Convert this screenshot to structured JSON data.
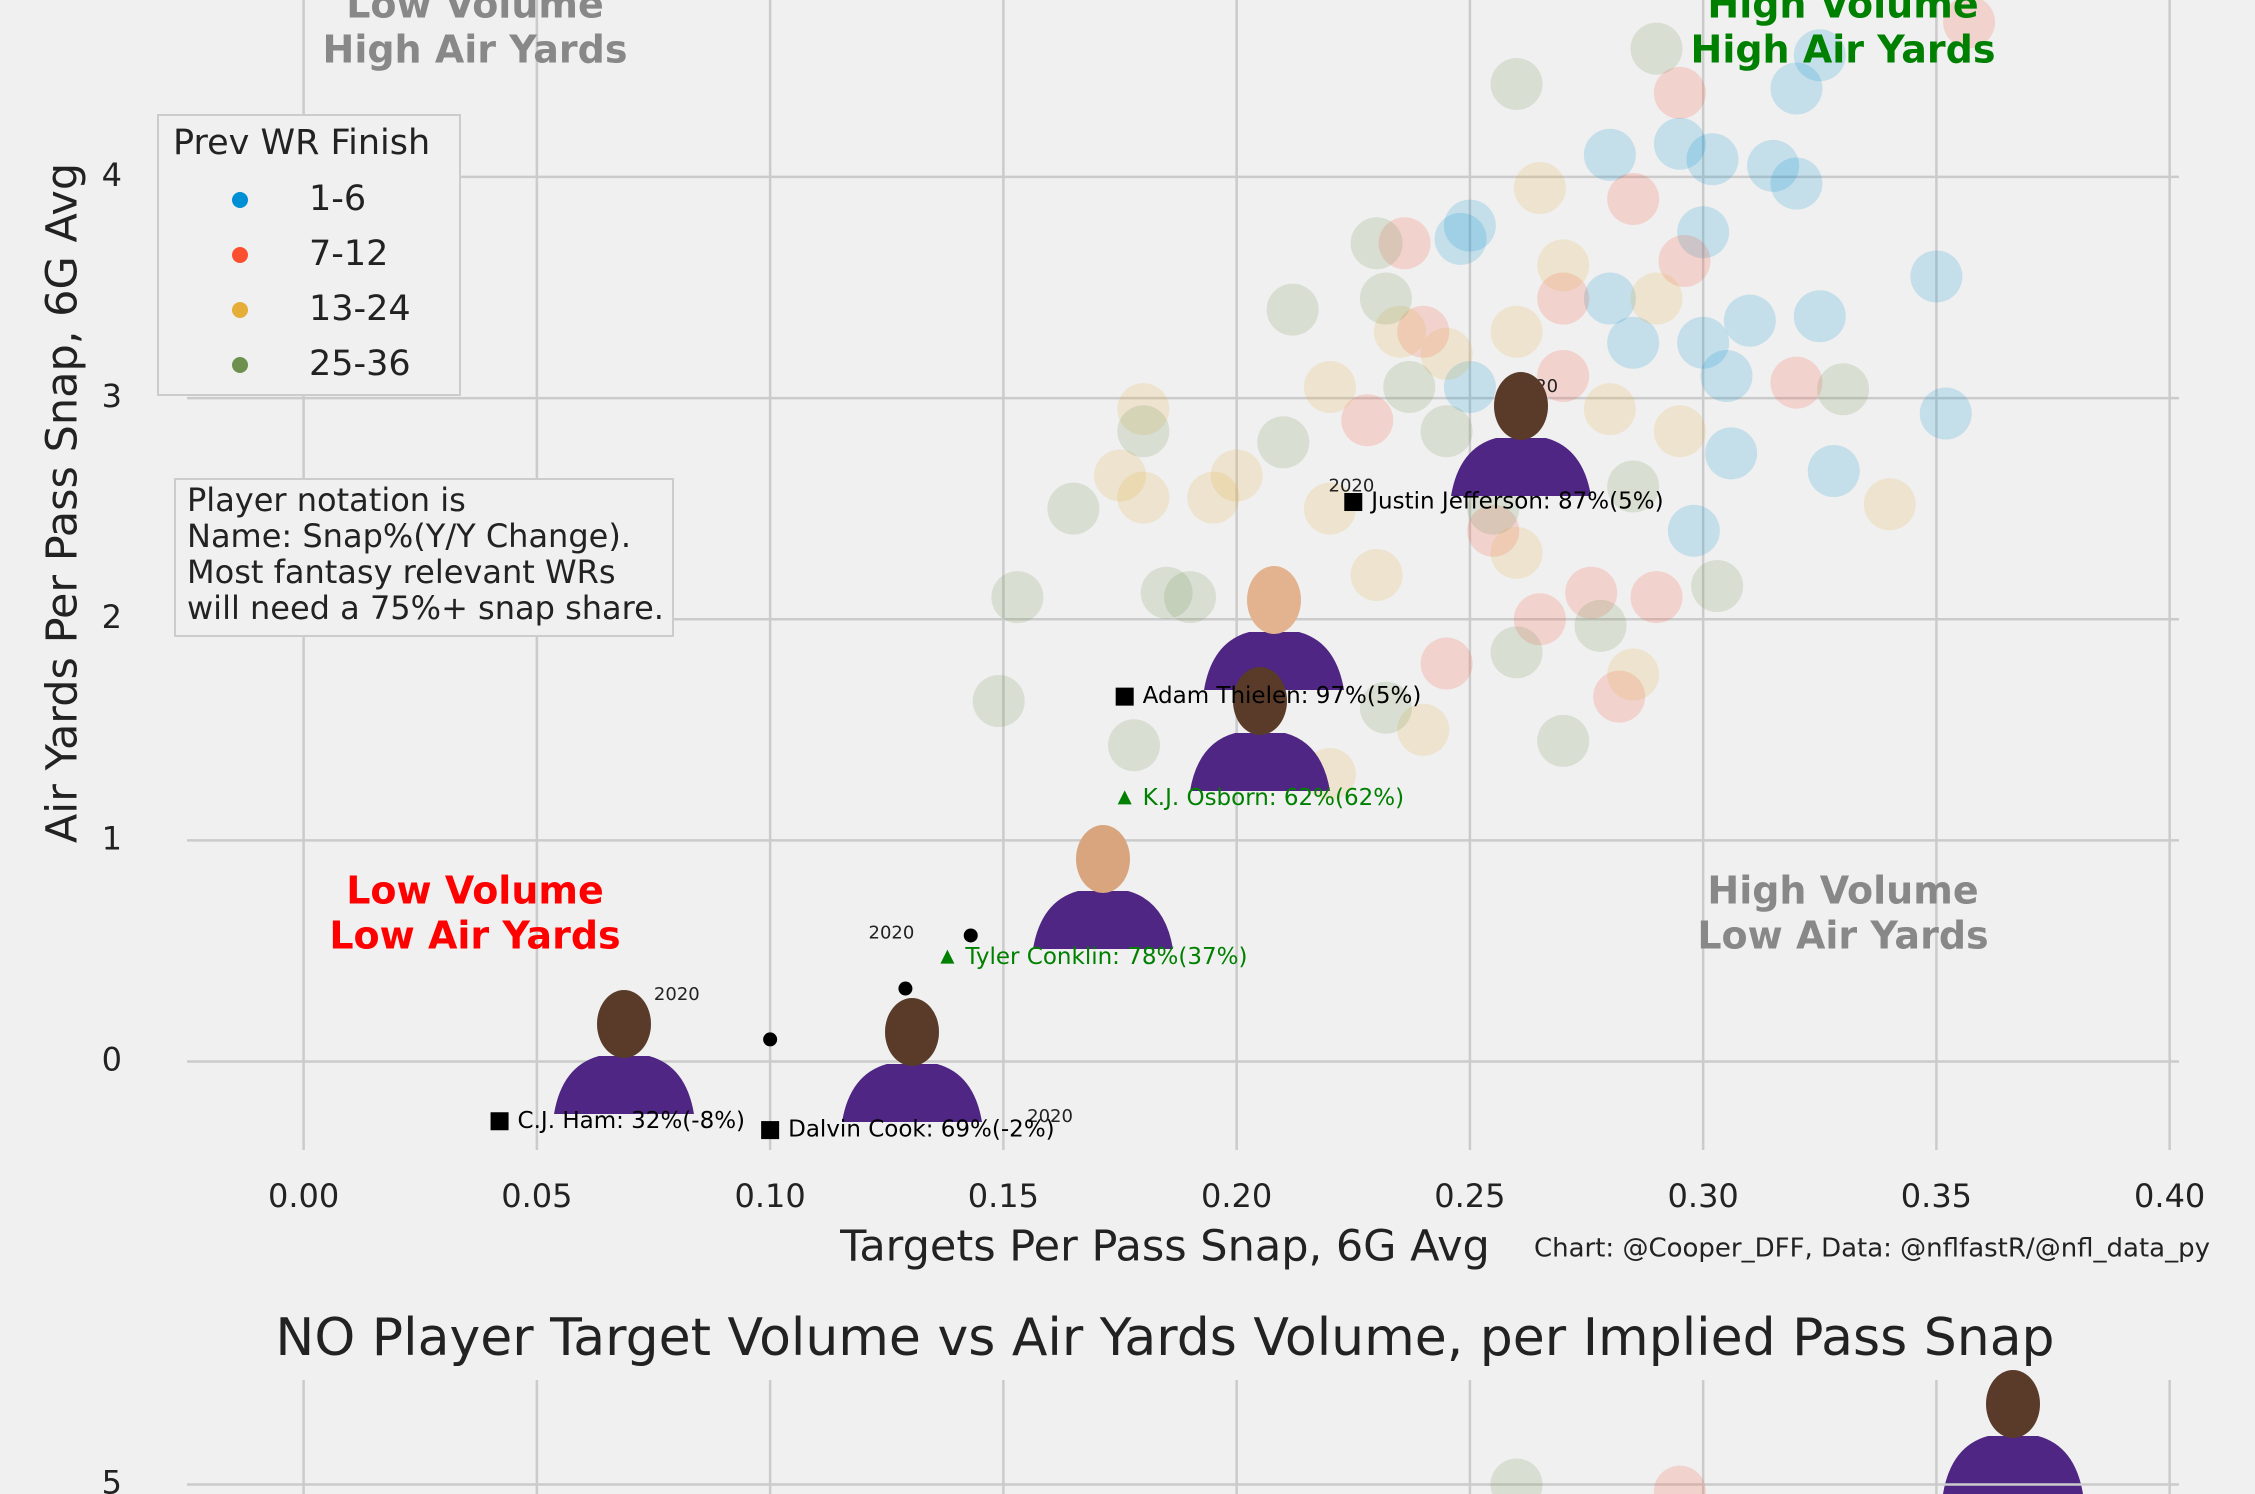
{
  "chart_data": [
    {
      "type": "scatter",
      "xlabel": "Targets Per Pass Snap, 6G Avg",
      "ylabel": "Air Yards Per Pass Snap, 6G Avg",
      "credit": "Chart: @Cooper_DFF, Data: @nflfastR/@nfl_data_py",
      "xlim": [
        -0.025,
        0.402
      ],
      "ylim": [
        -0.4,
        4.8
      ],
      "xticks": [
        {
          "value": 0,
          "label": "0.00"
        },
        {
          "value": 0.05,
          "label": "0.05"
        },
        {
          "value": 0.1,
          "label": "0.10"
        },
        {
          "value": 0.15,
          "label": "0.15"
        },
        {
          "value": 0.2,
          "label": "0.20"
        },
        {
          "value": 0.25,
          "label": "0.25"
        },
        {
          "value": 0.3,
          "label": "0.30"
        },
        {
          "value": 0.35,
          "label": "0.35"
        },
        {
          "value": 0.4,
          "label": "0.40"
        }
      ],
      "yticks": [
        0,
        1,
        2,
        3,
        4
      ],
      "grid": true,
      "legend": {
        "title": "Prev WR Finish",
        "position": "upper left"
      },
      "series": [
        {
          "name": "1-6",
          "color": "#008fd5",
          "x": [
            0.28,
            0.295,
            0.302,
            0.315,
            0.32,
            0.32,
            0.325,
            0.25,
            0.248,
            0.3,
            0.31,
            0.325,
            0.35,
            0.285,
            0.3,
            0.305,
            0.352,
            0.306,
            0.328,
            0.298,
            0.28,
            0.25
          ],
          "values": [
            4.1,
            4.15,
            4.08,
            4.05,
            3.97,
            4.4,
            4.55,
            3.78,
            3.72,
            3.75,
            3.35,
            3.37,
            3.55,
            3.25,
            3.25,
            3.1,
            2.93,
            2.75,
            2.67,
            2.4,
            3.45,
            3.05
          ]
        },
        {
          "name": "7-12",
          "color": "#fc4f30",
          "x": [
            0.295,
            0.357,
            0.285,
            0.296,
            0.236,
            0.24,
            0.27,
            0.32,
            0.276,
            0.29,
            0.282,
            0.255,
            0.265,
            0.245,
            0.27,
            0.228
          ],
          "values": [
            4.38,
            4.7,
            3.9,
            3.62,
            3.7,
            3.3,
            3.1,
            3.07,
            2.12,
            2.1,
            1.65,
            2.4,
            2.0,
            1.8,
            3.45,
            2.9
          ]
        },
        {
          "name": "13-24",
          "color": "#e5ae38",
          "x": [
            0.265,
            0.29,
            0.27,
            0.245,
            0.26,
            0.22,
            0.2,
            0.18,
            0.175,
            0.18,
            0.195,
            0.23,
            0.22,
            0.26,
            0.285,
            0.34,
            0.24,
            0.28,
            0.295,
            0.22,
            0.235
          ],
          "values": [
            3.95,
            3.45,
            3.6,
            3.2,
            3.3,
            3.05,
            2.65,
            2.95,
            2.65,
            2.55,
            2.55,
            2.2,
            2.5,
            2.3,
            1.75,
            2.52,
            1.5,
            2.95,
            2.85,
            1.3,
            3.3
          ]
        },
        {
          "name": "25-36",
          "color": "#6d904f",
          "x": [
            0.26,
            0.29,
            0.23,
            0.212,
            0.232,
            0.237,
            0.18,
            0.165,
            0.153,
            0.185,
            0.19,
            0.149,
            0.178,
            0.245,
            0.255,
            0.27,
            0.278,
            0.303,
            0.33,
            0.285,
            0.21,
            0.26,
            0.232
          ],
          "values": [
            4.42,
            4.58,
            3.7,
            3.4,
            3.45,
            3.05,
            2.85,
            2.5,
            2.1,
            2.12,
            2.1,
            1.63,
            1.43,
            2.85,
            2.5,
            1.45,
            1.97,
            2.15,
            3.04,
            2.6,
            2.8,
            1.85,
            1.6
          ]
        }
      ],
      "players": [
        {
          "label": "Justin Jefferson: 87%(5%)",
          "x": 0.225,
          "y": 2.53,
          "marker": "square",
          "color": "#000000"
        },
        {
          "label": "Adam Thielen: 97%(5%)",
          "x": 0.176,
          "y": 1.65,
          "marker": "square",
          "color": "#000000"
        },
        {
          "label": "K.J. Osborn: 62%(62%)",
          "x": 0.176,
          "y": 1.19,
          "marker": "triangle",
          "color": "#008000"
        },
        {
          "label": "Tyler Conklin: 78%(37%)",
          "x": 0.138,
          "y": 0.47,
          "marker": "triangle",
          "color": "#008000",
          "prev_x": 0.143,
          "prev_y": 0.57
        },
        {
          "label": "C.J. Ham: 32%(-8%)",
          "x": 0.042,
          "y": -0.27,
          "marker": "square",
          "color": "#000000",
          "prev_x": 0.1,
          "prev_y": 0.1
        },
        {
          "label": "Dalvin Cook: 69%(-2%)",
          "x": 0.1,
          "y": -0.31,
          "marker": "square",
          "color": "#000000",
          "prev_x": 0.129,
          "prev_y": 0.33
        }
      ],
      "annotations": [
        {
          "text": "2020",
          "x": 0.08,
          "y": 0.3
        },
        {
          "text": "2020",
          "x": 0.16,
          "y": -0.25
        },
        {
          "text": "2020",
          "x": 0.126,
          "y": 0.58
        },
        {
          "text": "2020",
          "x": 0.2246,
          "y": 2.6
        },
        {
          "text": "2020",
          "x": 0.264,
          "y": 3.05
        }
      ],
      "quadrant_labels": [
        {
          "lines": [
            "Low Volume",
            "High Air Yards"
          ],
          "color": "#888888"
        },
        {
          "lines": [
            "High Volume",
            "High Air Yards"
          ],
          "color": "#008000"
        },
        {
          "lines": [
            "Low Volume",
            "Low Air Yards"
          ],
          "color": "#ff0000"
        },
        {
          "lines": [
            "High Volume",
            "Low Air Yards"
          ],
          "color": "#888888"
        }
      ],
      "note": [
        "Player notation is",
        "Name: Snap%(Y/Y Change).",
        "Most fantasy relevant WRs",
        "will need a 75%+ snap share."
      ]
    },
    {
      "type": "scatter",
      "title": "NO Player Target Volume vs Air Yards Volume, per Implied Pass Snap",
      "xlim": [
        -0.025,
        0.402
      ],
      "ylim": [
        4.96,
        5.44
      ],
      "yticks": [
        5
      ],
      "x": [
        0.26,
        0.295
      ],
      "values": [
        5.0,
        4.97
      ],
      "colors": [
        "#6d904f",
        "#fc4f30"
      ]
    }
  ]
}
